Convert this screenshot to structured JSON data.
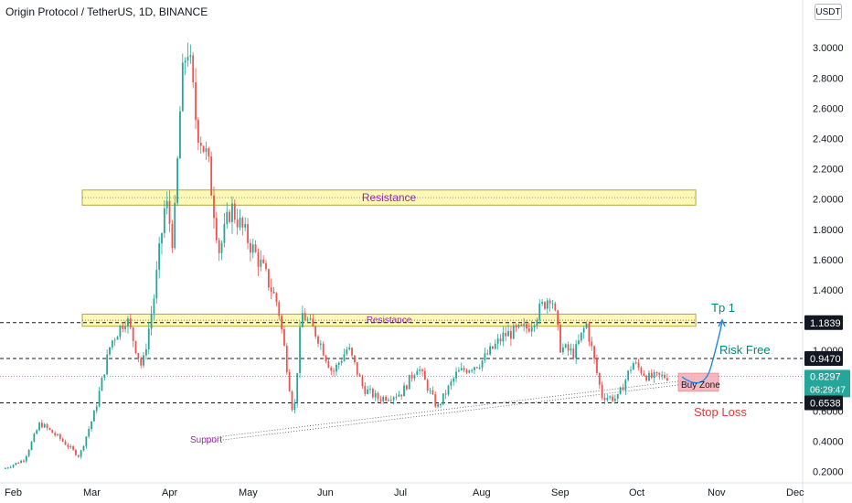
{
  "header": {
    "title": "Origin Protocol / TetherUS, 1D, BINANCE",
    "currency_button": "USDT"
  },
  "colors": {
    "up": "#26a69a",
    "down": "#ef5350",
    "zone_fill": "#fff59d",
    "zone_stroke": "#b5a642",
    "annotation_purple": "#9c27b0",
    "annotation_teal": "#00897b",
    "stop_red": "#e53935",
    "buy_zone_fill": "#f4a6b0"
  },
  "chart_data": {
    "type": "candlestick",
    "title": "Origin Protocol / TetherUS, 1D, BINANCE",
    "y_axis": {
      "side": "right",
      "range": [
        0.17,
        3.25
      ],
      "ticks": [
        0.2,
        0.4,
        0.6,
        0.8,
        1.0,
        1.2,
        1.4,
        1.6,
        1.8,
        2.0,
        2.2,
        2.4,
        2.6,
        2.8,
        3.0
      ],
      "tick_labels": [
        "0.2000",
        "0.4000",
        "0.6000",
        "0.8000",
        "1.0000",
        "1.2000",
        "1.4000",
        "1.6000",
        "1.8000",
        "2.0000",
        "2.2000",
        "2.4000",
        "2.6000",
        "2.8000",
        "3.0000"
      ]
    },
    "x_axis": {
      "tick_labels": [
        "Feb",
        "Mar",
        "Apr",
        "May",
        "Jun",
        "Jul",
        "Aug",
        "Sep",
        "Oct",
        "Nov",
        "Dec"
      ]
    },
    "price_path": [
      {
        "month": 0.0,
        "price": 0.22
      },
      {
        "month": 0.25,
        "price": 0.28
      },
      {
        "month": 0.45,
        "price": 0.52
      },
      {
        "month": 0.7,
        "price": 0.42
      },
      {
        "month": 0.95,
        "price": 0.3
      },
      {
        "month": 1.15,
        "price": 0.6
      },
      {
        "month": 1.35,
        "price": 1.05
      },
      {
        "month": 1.55,
        "price": 1.22
      },
      {
        "month": 1.75,
        "price": 0.88
      },
      {
        "month": 1.9,
        "price": 1.35
      },
      {
        "month": 2.05,
        "price": 2.0
      },
      {
        "month": 2.15,
        "price": 1.7
      },
      {
        "month": 2.25,
        "price": 2.7
      },
      {
        "month": 2.33,
        "price": 3.05
      },
      {
        "month": 2.45,
        "price": 2.5
      },
      {
        "month": 2.6,
        "price": 2.25
      },
      {
        "month": 2.75,
        "price": 1.65
      },
      {
        "month": 2.9,
        "price": 1.95
      },
      {
        "month": 3.1,
        "price": 1.75
      },
      {
        "month": 3.3,
        "price": 1.55
      },
      {
        "month": 3.5,
        "price": 1.3
      },
      {
        "month": 3.6,
        "price": 0.95
      },
      {
        "month": 3.7,
        "price": 0.55
      },
      {
        "month": 3.8,
        "price": 1.25
      },
      {
        "month": 4.0,
        "price": 1.1
      },
      {
        "month": 4.2,
        "price": 0.85
      },
      {
        "month": 4.4,
        "price": 1.02
      },
      {
        "month": 4.6,
        "price": 0.75
      },
      {
        "month": 4.8,
        "price": 0.68
      },
      {
        "month": 5.1,
        "price": 0.72
      },
      {
        "month": 5.3,
        "price": 0.9
      },
      {
        "month": 5.55,
        "price": 0.62
      },
      {
        "month": 5.8,
        "price": 0.85
      },
      {
        "month": 6.1,
        "price": 0.92
      },
      {
        "month": 6.4,
        "price": 1.1
      },
      {
        "month": 6.7,
        "price": 1.15
      },
      {
        "month": 7.0,
        "price": 1.38
      },
      {
        "month": 7.12,
        "price": 1.02
      },
      {
        "month": 7.3,
        "price": 0.98
      },
      {
        "month": 7.45,
        "price": 1.18
      },
      {
        "month": 7.65,
        "price": 0.7
      },
      {
        "month": 7.85,
        "price": 0.68
      },
      {
        "month": 8.05,
        "price": 0.92
      },
      {
        "month": 8.25,
        "price": 0.82
      },
      {
        "month": 8.5,
        "price": 0.83
      }
    ],
    "zones": [
      {
        "label": "Resistance",
        "low": 1.96,
        "high": 2.06,
        "from_month": 0.0,
        "to_month": 8.85
      },
      {
        "label": "Resistance",
        "low": 1.16,
        "high": 1.24,
        "from_month": 0.0,
        "to_month": 8.85
      }
    ],
    "levels": [
      {
        "price": 1.1839,
        "label": "1.1839",
        "style": "dashed"
      },
      {
        "price": 0.947,
        "label": "0.9470",
        "style": "dashed"
      },
      {
        "price": 0.8297,
        "label": "0.8297",
        "countdown": "06:29:47",
        "style": "dotted-current"
      },
      {
        "price": 0.6538,
        "label": "0.6538",
        "style": "dashed"
      }
    ],
    "trendlines": [
      {
        "label": "Support",
        "from": {
          "month": 2.7,
          "price": 0.42
        },
        "to": {
          "month": 8.85,
          "price": 0.81
        },
        "style": "dotted"
      }
    ],
    "annotations": [
      {
        "text": "Tp 1",
        "month": 8.12,
        "price": 1.29
      },
      {
        "text": "Risk Free",
        "month": 8.25,
        "price": 1.0
      },
      {
        "text": "Buy Zone",
        "month": 7.95,
        "price": 0.765
      },
      {
        "text": "Stop Loss",
        "month": 8.3,
        "price": 0.59
      },
      {
        "text": "Support",
        "month": 1.6,
        "price": 0.42
      }
    ],
    "buy_zone": {
      "low": 0.73,
      "high": 0.85,
      "from_month": 7.6,
      "to_month": 8.2
    }
  }
}
